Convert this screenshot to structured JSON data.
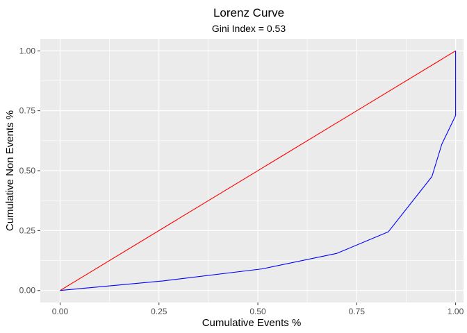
{
  "chart_data": {
    "type": "line",
    "title": "Lorenz Curve",
    "subtitle": "Gini Index = 0.53",
    "xlabel": "Cumulative Events %",
    "ylabel": "Cumulative Non Events %",
    "xlim": [
      -0.05,
      1.02
    ],
    "ylim": [
      -0.05,
      1.05
    ],
    "x_ticks": [
      0,
      0.25,
      0.5,
      0.75,
      1
    ],
    "x_tick_labels": [
      "0.00",
      "0.25",
      "0.50",
      "0.75",
      "1.00"
    ],
    "y_ticks": [
      0,
      0.25,
      0.5,
      0.75,
      1
    ],
    "y_tick_labels": [
      "0.00",
      "0.25",
      "0.50",
      "0.75",
      "1.00"
    ],
    "grid": true,
    "panel_background": "#ebebeb",
    "series": [
      {
        "color": "#ff0000",
        "x": [
          0,
          0.94,
          1
        ],
        "y": [
          0,
          0.94,
          1
        ]
      },
      {
        "color": "#0000ff",
        "x": [
          0,
          0.26,
          0.51,
          0.7,
          0.83,
          0.94,
          0.965,
          1,
          1
        ],
        "y": [
          0,
          0.04,
          0.09,
          0.155,
          0.245,
          0.475,
          0.61,
          0.73,
          1
        ]
      }
    ]
  }
}
